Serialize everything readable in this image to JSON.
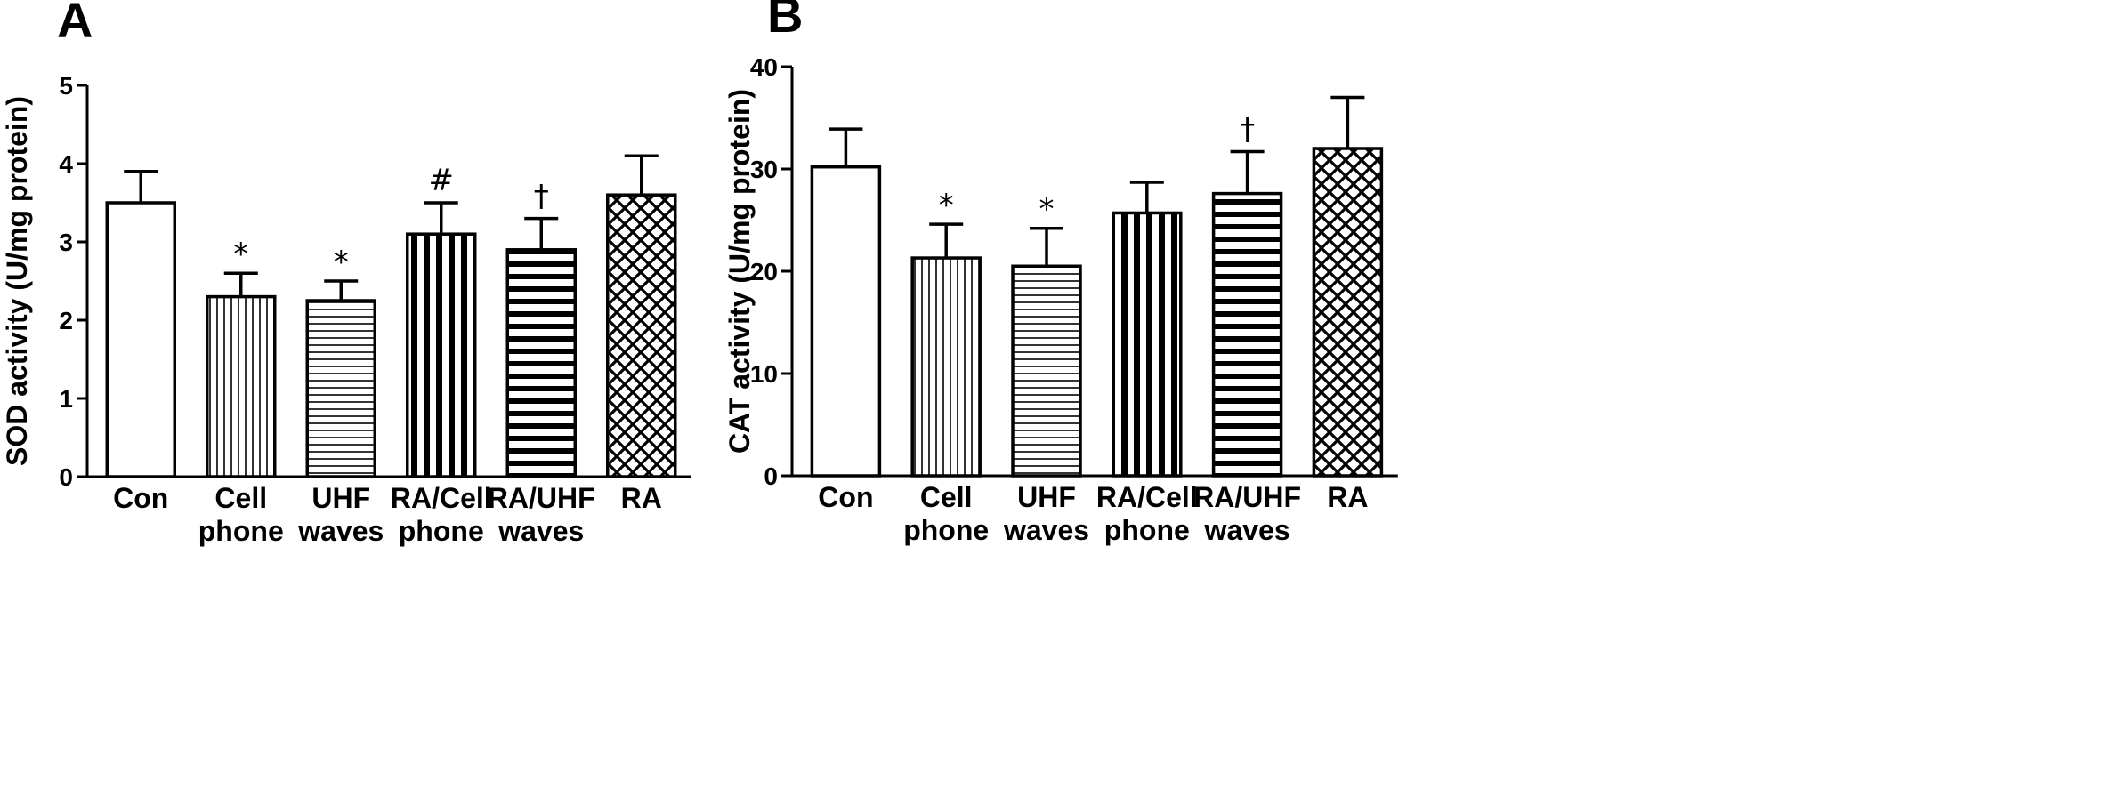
{
  "chart_data": [
    {
      "type": "bar",
      "panel": "A",
      "categories": [
        "Con",
        "Cell\nphone",
        "UHF\nwaves",
        "RA/Cell\nphone",
        "RA/UHF\nwaves",
        "RA"
      ],
      "values": [
        3.5,
        2.3,
        2.25,
        3.1,
        2.9,
        3.6
      ],
      "errors": [
        0.4,
        0.3,
        0.25,
        0.4,
        0.4,
        0.5
      ],
      "annotations": [
        "",
        "*",
        "*",
        "#",
        "†",
        ""
      ],
      "patterns": [
        "none",
        "vertical-thin",
        "horizontal-thin",
        "vertical-thick",
        "horizontal-thick",
        "crosshatch"
      ],
      "ylabel": "SOD activity (U/mg protein)",
      "xlabel": "",
      "ylim": [
        0,
        5
      ],
      "yticks": [
        0,
        1,
        2,
        3,
        4,
        5
      ]
    },
    {
      "type": "bar",
      "panel": "B",
      "categories": [
        "Con",
        "Cell\nphone",
        "UHF\nwaves",
        "RA/Cell\nphone",
        "RA/UHF\nwaves",
        "RA"
      ],
      "values": [
        30.2,
        21.3,
        20.5,
        25.7,
        27.6,
        32.0
      ],
      "errors": [
        3.7,
        3.3,
        3.7,
        3.0,
        4.1,
        5.0
      ],
      "annotations": [
        "",
        "*",
        "*",
        "",
        "†",
        ""
      ],
      "patterns": [
        "none",
        "vertical-thin",
        "horizontal-thin",
        "vertical-thick",
        "horizontal-thick",
        "crosshatch"
      ],
      "ylabel": "CAT activity (U/mg protein)",
      "xlabel": "",
      "ylim": [
        0,
        40
      ],
      "yticks": [
        0,
        10,
        20,
        30,
        40
      ]
    }
  ]
}
